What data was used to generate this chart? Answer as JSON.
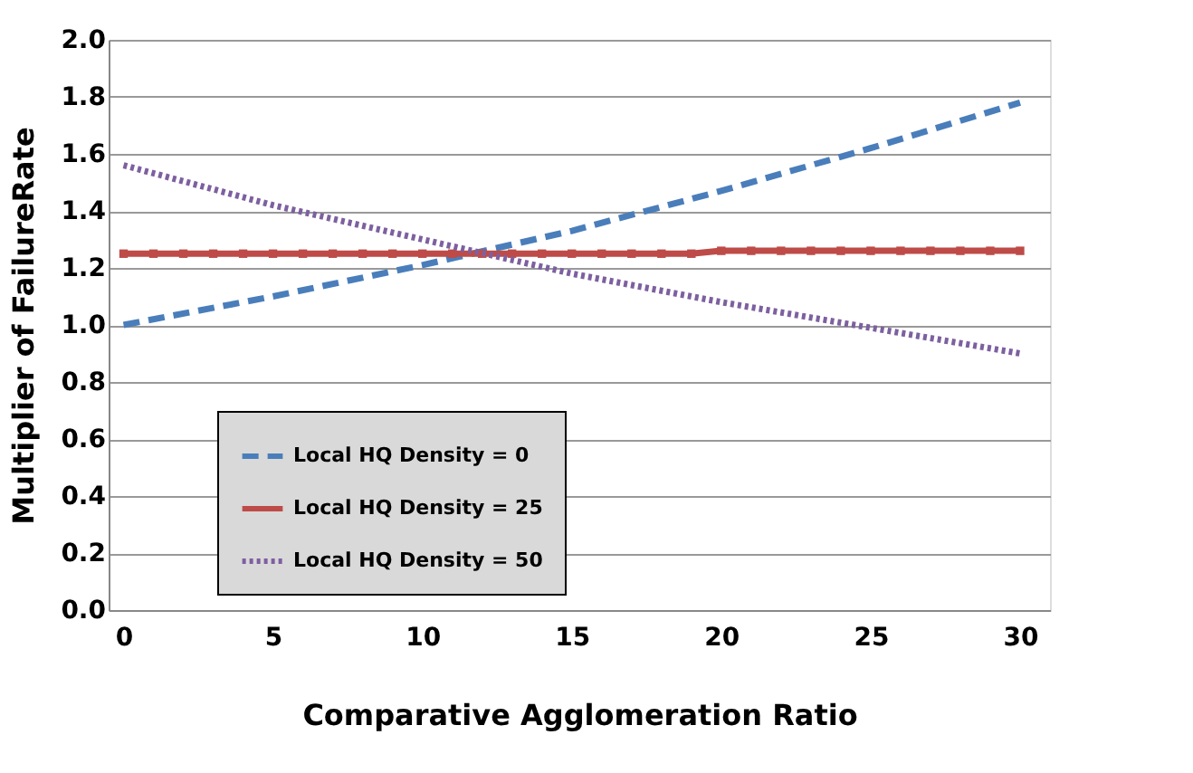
{
  "chart_data": {
    "type": "line",
    "xlabel": "Comparative Agglomeration Ratio",
    "ylabel": "Multiplier of FailureRate",
    "xlim": [
      -0.5,
      31
    ],
    "xticks": [
      0,
      5,
      10,
      15,
      20,
      25,
      30
    ],
    "ylim": [
      0,
      2
    ],
    "yticks": [
      {
        "value": 0,
        "label": "0.0"
      },
      {
        "value": 0.2,
        "label": "0.2"
      },
      {
        "value": 0.4,
        "label": "0.4"
      },
      {
        "value": 0.6,
        "label": "0.6"
      },
      {
        "value": 0.8,
        "label": "0.8"
      },
      {
        "value": 1,
        "label": "1.0"
      },
      {
        "value": 1.2,
        "label": "1.2"
      },
      {
        "value": 1.4,
        "label": "1.4"
      },
      {
        "value": 1.6,
        "label": "1.6"
      },
      {
        "value": 1.8,
        "label": "1.8"
      },
      {
        "value": 2,
        "label": "2.0"
      }
    ],
    "grid": "y",
    "legend": "left",
    "series": [
      {
        "name": "Local HQ Density = 0",
        "color": "#4a7ebb",
        "line_style": "dashed",
        "marker": "none",
        "x": [
          0,
          5,
          10,
          15,
          20,
          25,
          30
        ],
        "values": [
          1.0,
          1.1,
          1.21,
          1.33,
          1.47,
          1.62,
          1.78
        ]
      },
      {
        "name": "Local HQ Density = 25",
        "color": "#be4b48",
        "line_style": "solid",
        "marker": "square",
        "x": [
          0,
          1,
          2,
          3,
          4,
          5,
          6,
          7,
          8,
          9,
          10,
          11,
          12,
          13,
          14,
          15,
          16,
          17,
          18,
          19,
          20,
          21,
          22,
          23,
          24,
          25,
          26,
          27,
          28,
          29,
          30
        ],
        "values": [
          1.25,
          1.25,
          1.25,
          1.25,
          1.25,
          1.25,
          1.25,
          1.25,
          1.25,
          1.25,
          1.25,
          1.25,
          1.25,
          1.25,
          1.25,
          1.25,
          1.25,
          1.25,
          1.25,
          1.25,
          1.26,
          1.26,
          1.26,
          1.26,
          1.26,
          1.26,
          1.26,
          1.26,
          1.26,
          1.26,
          1.26
        ]
      },
      {
        "name": "Local HQ Density = 50",
        "color": "#7d60a0",
        "line_style": "dotted",
        "marker": "none",
        "x": [
          0,
          5,
          10,
          15,
          20,
          25,
          30
        ],
        "values": [
          1.56,
          1.42,
          1.3,
          1.18,
          1.08,
          0.99,
          0.9
        ]
      }
    ]
  }
}
